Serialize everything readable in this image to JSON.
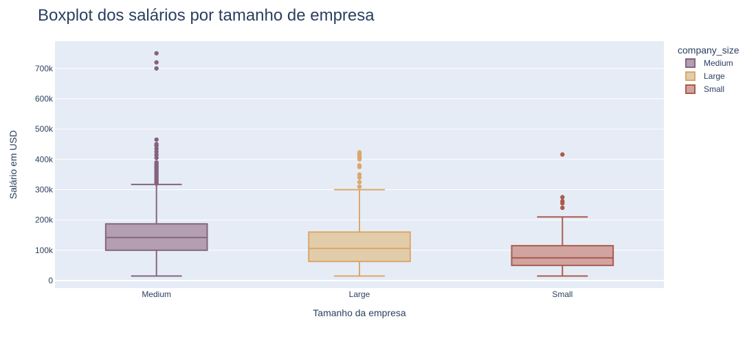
{
  "chart_data": {
    "type": "box",
    "title": "Boxplot dos salários por tamanho de empresa",
    "xlabel": "Tamanho da empresa",
    "ylabel": "Salário em USD",
    "ylim": [
      -25000,
      790000
    ],
    "yticks": [
      0,
      100000,
      200000,
      300000,
      400000,
      500000,
      600000,
      700000
    ],
    "ytick_labels": [
      "0",
      "100k",
      "200k",
      "300k",
      "400k",
      "500k",
      "600k",
      "700k"
    ],
    "grid": true,
    "legend": {
      "title": "company_size",
      "placement": "top-right"
    },
    "series": [
      {
        "name": "Medium",
        "color": "#86627f",
        "fill": "#b49fb2",
        "min": 15000,
        "q1": 100000,
        "median": 142000,
        "q3": 187000,
        "max": 317000,
        "outliers": [
          320000,
          325000,
          330000,
          335000,
          340000,
          345000,
          350000,
          355000,
          360000,
          365000,
          370000,
          375000,
          380000,
          385000,
          390000,
          405000,
          415000,
          425000,
          435000,
          445000,
          450000,
          465000,
          700000,
          720000,
          750000
        ]
      },
      {
        "name": "Large",
        "color": "#dda66a",
        "fill": "#e2cdaa",
        "min": 15000,
        "q1": 63000,
        "median": 106000,
        "q3": 160000,
        "max": 300000,
        "outliers": [
          310000,
          325000,
          340000,
          350000,
          375000,
          380000,
          400000,
          405000,
          410000,
          415000,
          420000,
          423000
        ]
      },
      {
        "name": "Small",
        "color": "#a95a4d",
        "fill": "#d1a4a0",
        "min": 15000,
        "q1": 50000,
        "median": 75000,
        "q3": 115000,
        "max": 210000,
        "outliers": [
          240000,
          255000,
          262000,
          275000,
          416000
        ]
      }
    ]
  }
}
